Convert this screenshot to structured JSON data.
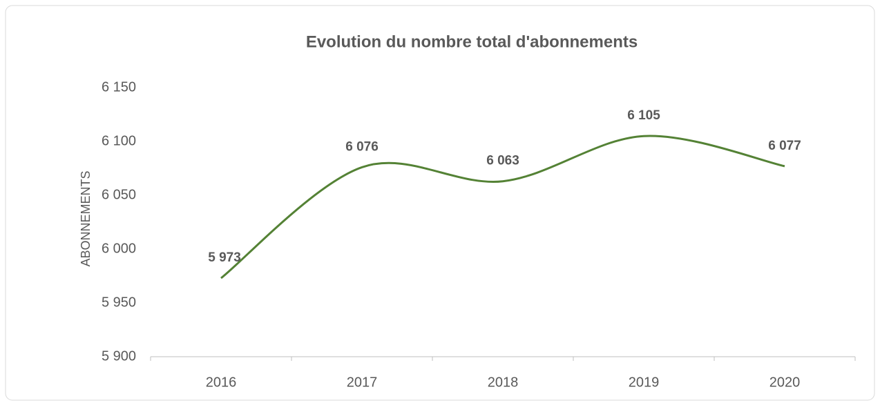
{
  "chart_data": {
    "type": "line",
    "title": "Evolution du nombre total d'abonnements",
    "y_label": "ABONNEMENTS",
    "categories": [
      "2016",
      "2017",
      "2018",
      "2019",
      "2020"
    ],
    "series": [
      {
        "name": "Abonnements",
        "color": "#548235",
        "values": [
          5973,
          6076,
          6063,
          6105,
          6077
        ],
        "value_labels": [
          "5 973",
          "6 076",
          "6 063",
          "6 105",
          "6 077"
        ]
      }
    ],
    "ylim": [
      5900,
      6150
    ],
    "yticks": [
      {
        "value": 5900,
        "label": "5 900"
      },
      {
        "value": 5950,
        "label": "5 950"
      },
      {
        "value": 6000,
        "label": "6 000"
      },
      {
        "value": 6050,
        "label": "6 050"
      },
      {
        "value": 6100,
        "label": "6 100"
      },
      {
        "value": 6150,
        "label": "6 150"
      }
    ],
    "smooth": true
  }
}
